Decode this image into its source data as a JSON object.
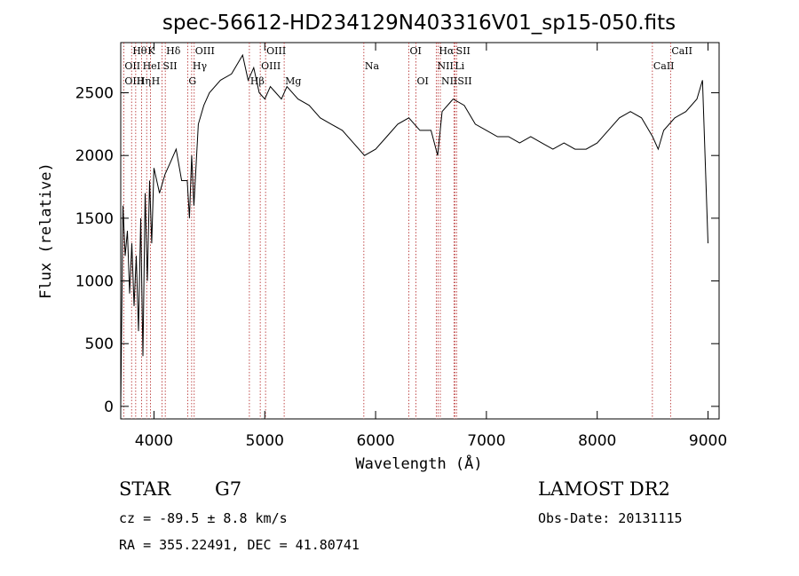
{
  "chart_data": {
    "type": "line",
    "title": "spec-56612-HD234129N403316V01_sp15-050.fits",
    "xlabel": "Wavelength (Å)",
    "ylabel": "Flux (relative)",
    "xlim": [
      3700,
      9100
    ],
    "ylim": [
      -100,
      2900
    ],
    "x_ticks": [
      4000,
      5000,
      6000,
      7000,
      8000,
      9000
    ],
    "y_ticks": [
      0,
      500,
      1000,
      1500,
      2000,
      2500
    ],
    "grid": false,
    "series": [
      {
        "x": [
          3700,
          3720,
          3740,
          3760,
          3780,
          3800,
          3820,
          3840,
          3860,
          3880,
          3900,
          3920,
          3940,
          3960,
          3980,
          4000,
          4050,
          4100,
          4150,
          4200,
          4250,
          4300,
          4320,
          4340,
          4360,
          4400,
          4450,
          4500,
          4600,
          4700,
          4800,
          4850,
          4900,
          4950,
          5000,
          5050,
          5100,
          5150,
          5200,
          5300,
          5400,
          5500,
          5600,
          5700,
          5800,
          5900,
          6000,
          6100,
          6200,
          6300,
          6400,
          6500,
          6560,
          6600,
          6700,
          6800,
          6900,
          7000,
          7100,
          7200,
          7300,
          7400,
          7500,
          7600,
          7700,
          7800,
          7900,
          8000,
          8100,
          8200,
          8300,
          8400,
          8500,
          8550,
          8600,
          8700,
          8800,
          8900,
          8950,
          9000
        ],
        "y": [
          0,
          1600,
          1200,
          1400,
          900,
          1300,
          800,
          1200,
          600,
          1500,
          400,
          1700,
          1000,
          1800,
          1300,
          1900,
          1700,
          1850,
          1950,
          2050,
          1800,
          1800,
          1500,
          2000,
          1600,
          2250,
          2400,
          2500,
          2600,
          2650,
          2800,
          2600,
          2700,
          2500,
          2450,
          2550,
          2500,
          2450,
          2550,
          2450,
          2400,
          2300,
          2250,
          2200,
          2100,
          2000,
          2050,
          2150,
          2250,
          2300,
          2200,
          2200,
          2000,
          2350,
          2450,
          2400,
          2250,
          2200,
          2150,
          2150,
          2100,
          2150,
          2100,
          2050,
          2100,
          2050,
          2050,
          2100,
          2200,
          2300,
          2350,
          2300,
          2150,
          2050,
          2200,
          2300,
          2350,
          2450,
          2600,
          1300
        ]
      }
    ],
    "lines": [
      {
        "label": "Hθ",
        "x": 3798,
        "row": 0
      },
      {
        "label": "OII",
        "x": 3727,
        "row": 1
      },
      {
        "label": "OIII",
        "x": 3727,
        "row": 2
      },
      {
        "label": "K",
        "x": 3934,
        "row": 0
      },
      {
        "label": "HeI",
        "x": 3889,
        "row": 1
      },
      {
        "label": "Hη",
        "x": 3835,
        "row": 2
      },
      {
        "label": "Hδ",
        "x": 4102,
        "row": 0
      },
      {
        "label": "SII",
        "x": 4072,
        "row": 1
      },
      {
        "label": "H",
        "x": 3969,
        "row": 2
      },
      {
        "label": "OIII",
        "x": 4363,
        "row": 0
      },
      {
        "label": "Hγ",
        "x": 4340,
        "row": 1
      },
      {
        "label": "G",
        "x": 4304,
        "row": 2
      },
      {
        "label": "OIII",
        "x": 5007,
        "row": 0
      },
      {
        "label": "OIII",
        "x": 4959,
        "row": 1
      },
      {
        "label": "Hβ",
        "x": 4861,
        "row": 2
      },
      {
        "label": "Mg",
        "x": 5175,
        "row": 2
      },
      {
        "label": "Na",
        "x": 5894,
        "row": 1
      },
      {
        "label": "OI",
        "x": 6300,
        "row": 0
      },
      {
        "label": "OI",
        "x": 6364,
        "row": 2
      },
      {
        "label": "Hα",
        "x": 6563,
        "row": 0
      },
      {
        "label": "NII",
        "x": 6548,
        "row": 1
      },
      {
        "label": "NII",
        "x": 6584,
        "row": 2
      },
      {
        "label": "SII",
        "x": 6717,
        "row": 0
      },
      {
        "label": "Li",
        "x": 6707,
        "row": 1
      },
      {
        "label": "SII",
        "x": 6731,
        "row": 2
      },
      {
        "label": "CaII",
        "x": 8662,
        "row": 0
      },
      {
        "label": "CaII",
        "x": 8498,
        "row": 1
      }
    ]
  },
  "info": {
    "class": "STAR",
    "subclass": "G7",
    "cz": "cz = -89.5 ± 8.8 km/s",
    "coords": "RA = 355.22491, DEC =  41.80741",
    "survey": "LAMOST DR2",
    "obs_date": "Obs-Date: 20131115"
  }
}
